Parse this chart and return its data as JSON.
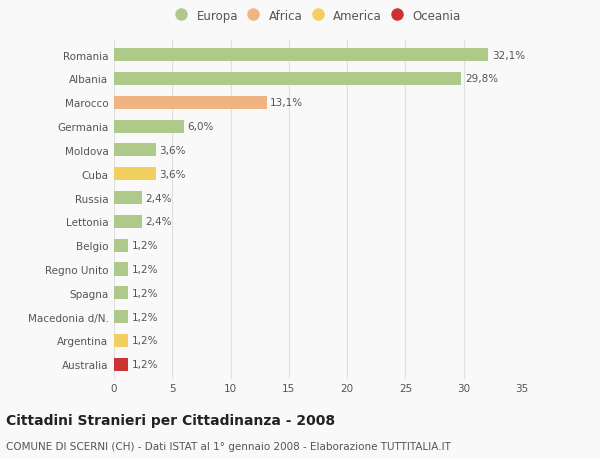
{
  "countries": [
    "Romania",
    "Albania",
    "Marocco",
    "Germania",
    "Moldova",
    "Cuba",
    "Russia",
    "Lettonia",
    "Belgio",
    "Regno Unito",
    "Spagna",
    "Macedonia d/N.",
    "Argentina",
    "Australia"
  ],
  "values": [
    32.1,
    29.8,
    13.1,
    6.0,
    3.6,
    3.6,
    2.4,
    2.4,
    1.2,
    1.2,
    1.2,
    1.2,
    1.2,
    1.2
  ],
  "labels": [
    "32,1%",
    "29,8%",
    "13,1%",
    "6,0%",
    "3,6%",
    "3,6%",
    "2,4%",
    "2,4%",
    "1,2%",
    "1,2%",
    "1,2%",
    "1,2%",
    "1,2%",
    "1,2%"
  ],
  "continents": [
    "Europa",
    "Europa",
    "Africa",
    "Europa",
    "Europa",
    "America",
    "Europa",
    "Europa",
    "Europa",
    "Europa",
    "Europa",
    "Europa",
    "America",
    "Oceania"
  ],
  "colors": {
    "Europa": "#aec98a",
    "Africa": "#f0b482",
    "America": "#f2d060",
    "Oceania": "#cc3333"
  },
  "legend_order": [
    "Europa",
    "Africa",
    "America",
    "Oceania"
  ],
  "xlim": [
    0,
    35
  ],
  "xticks": [
    0,
    5,
    10,
    15,
    20,
    25,
    30,
    35
  ],
  "title": "Cittadini Stranieri per Cittadinanza - 2008",
  "subtitle": "COMUNE DI SCERNI (CH) - Dati ISTAT al 1° gennaio 2008 - Elaborazione TUTTITALIA.IT",
  "bg_color": "#f9f9f9",
  "plot_bg_color": "#f9f9f9",
  "grid_color": "#e0e0e0",
  "bar_height": 0.55,
  "title_fontsize": 10,
  "subtitle_fontsize": 7.5,
  "tick_fontsize": 7.5,
  "label_fontsize": 7.5,
  "legend_fontsize": 8.5
}
